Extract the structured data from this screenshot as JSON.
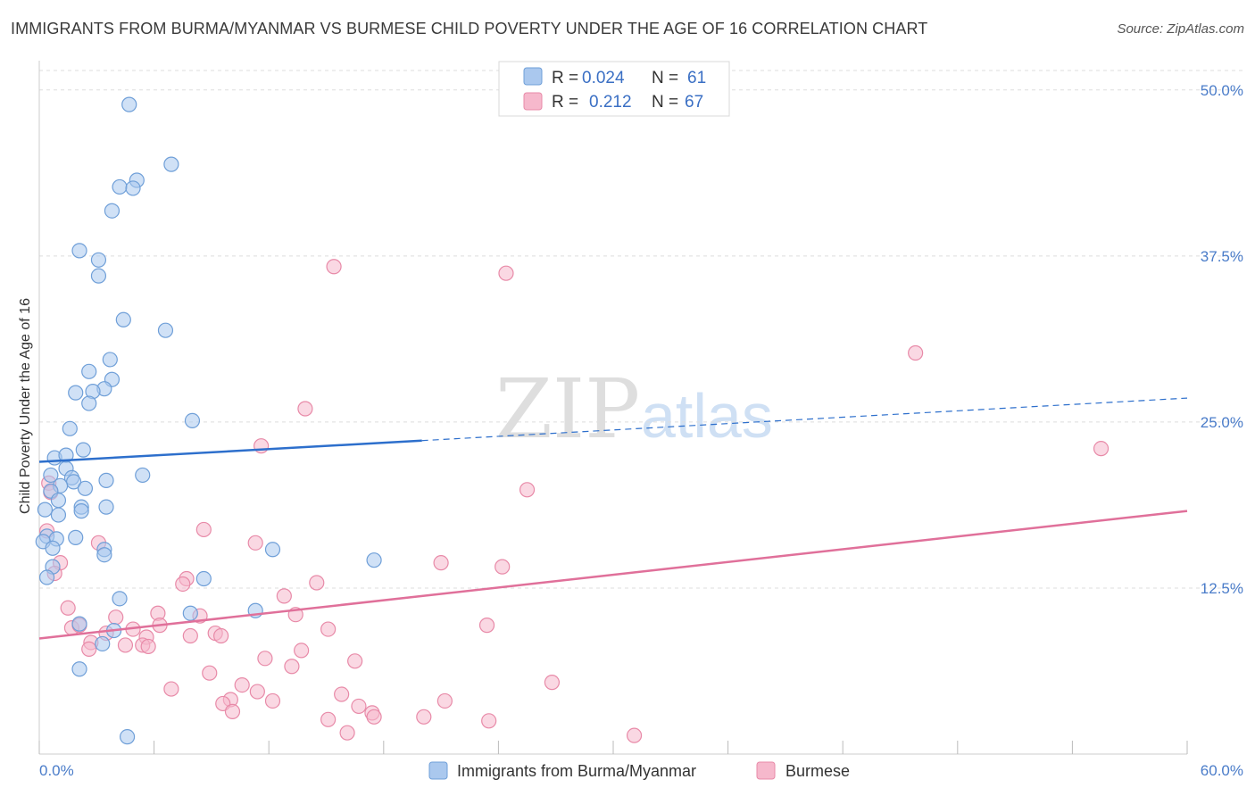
{
  "title": "IMMIGRANTS FROM BURMA/MYANMAR VS BURMESE CHILD POVERTY UNDER THE AGE OF 16 CORRELATION CHART",
  "source": "Source: ZipAtlas.com",
  "watermark": {
    "zip": "ZIP",
    "atlas": "atlas"
  },
  "colors": {
    "blue_fill": "#aac8ee",
    "blue_stroke": "#6f9fd8",
    "blue_line": "#2d6fcc",
    "pink_fill": "#f6b8cc",
    "pink_stroke": "#e88aa8",
    "pink_line": "#e0709a",
    "grid": "#dddddd",
    "axis_text": "#4a7cc9"
  },
  "legend": {
    "rows": [
      {
        "r_label": "R =",
        "r_value": "0.024",
        "n_label": "N =",
        "n_value": "61"
      },
      {
        "r_label": "R =",
        "r_value": "0.212",
        "n_label": "N =",
        "n_value": "67"
      }
    ]
  },
  "chart_data": {
    "type": "scatter",
    "title": "IMMIGRANTS FROM BURMA/MYANMAR VS BURMESE CHILD POVERTY UNDER THE AGE OF 16 CORRELATION CHART",
    "xlabel": "",
    "ylabel": "Child Poverty Under the Age of 16",
    "xlim": [
      0,
      60
    ],
    "ylim": [
      0,
      52
    ],
    "x_tick_labels": [
      "0.0%",
      "60.0%"
    ],
    "y_ticks": [
      12.5,
      25.0,
      37.5,
      50.0
    ],
    "y_tick_labels": [
      "12.5%",
      "25.0%",
      "37.5%",
      "50.0%"
    ],
    "grid": true,
    "legend_position": "top-center",
    "series": [
      {
        "name": "Immigrants from Burma/Myanmar",
        "color": "blue",
        "trend": {
          "x_solid_end": 20,
          "x_end": 60,
          "y_start": 22.0,
          "y_at_solid_end": 23.6,
          "y_end": 26.8
        },
        "points": [
          [
            4.7,
            48.9
          ],
          [
            6.9,
            44.4
          ],
          [
            5.1,
            43.2
          ],
          [
            4.2,
            42.7
          ],
          [
            4.9,
            42.6
          ],
          [
            3.8,
            40.9
          ],
          [
            2.1,
            37.9
          ],
          [
            3.1,
            37.2
          ],
          [
            3.1,
            36.0
          ],
          [
            4.4,
            32.7
          ],
          [
            6.6,
            31.9
          ],
          [
            3.7,
            29.7
          ],
          [
            2.6,
            28.8
          ],
          [
            3.8,
            28.2
          ],
          [
            3.4,
            27.5
          ],
          [
            2.8,
            27.3
          ],
          [
            1.9,
            27.2
          ],
          [
            2.6,
            26.4
          ],
          [
            1.6,
            24.5
          ],
          [
            8.0,
            25.1
          ],
          [
            2.3,
            22.9
          ],
          [
            0.8,
            22.3
          ],
          [
            1.4,
            22.5
          ],
          [
            1.4,
            21.5
          ],
          [
            0.6,
            21.0
          ],
          [
            5.4,
            21.0
          ],
          [
            1.7,
            20.8
          ],
          [
            3.5,
            20.6
          ],
          [
            1.8,
            20.5
          ],
          [
            1.1,
            20.2
          ],
          [
            2.4,
            20.0
          ],
          [
            0.6,
            19.8
          ],
          [
            1.0,
            19.1
          ],
          [
            2.2,
            18.6
          ],
          [
            3.5,
            18.6
          ],
          [
            1.0,
            18.0
          ],
          [
            0.3,
            18.4
          ],
          [
            2.2,
            18.3
          ],
          [
            0.4,
            16.4
          ],
          [
            1.9,
            16.3
          ],
          [
            0.9,
            16.2
          ],
          [
            0.2,
            16.0
          ],
          [
            0.7,
            15.5
          ],
          [
            3.4,
            15.4
          ],
          [
            12.2,
            15.4
          ],
          [
            3.4,
            15.0
          ],
          [
            17.5,
            14.6
          ],
          [
            0.7,
            14.1
          ],
          [
            8.6,
            13.2
          ],
          [
            0.4,
            13.3
          ],
          [
            4.2,
            11.7
          ],
          [
            11.3,
            10.8
          ],
          [
            7.9,
            10.6
          ],
          [
            2.1,
            9.8
          ],
          [
            3.9,
            9.3
          ],
          [
            3.3,
            8.3
          ],
          [
            2.1,
            6.4
          ],
          [
            4.6,
            1.3
          ]
        ]
      },
      {
        "name": "Burmese",
        "color": "pink",
        "trend": {
          "x_start": 0,
          "x_end": 60,
          "y_start": 8.7,
          "y_end": 18.3
        },
        "points": [
          [
            15.4,
            36.7
          ],
          [
            24.4,
            36.2
          ],
          [
            45.8,
            30.2
          ],
          [
            55.5,
            23.0
          ],
          [
            13.9,
            26.0
          ],
          [
            11.6,
            23.2
          ],
          [
            25.5,
            19.9
          ],
          [
            0.5,
            20.4
          ],
          [
            0.6,
            19.7
          ],
          [
            0.4,
            16.8
          ],
          [
            8.6,
            16.9
          ],
          [
            11.3,
            15.9
          ],
          [
            3.1,
            15.9
          ],
          [
            1.1,
            14.4
          ],
          [
            21.0,
            14.4
          ],
          [
            24.2,
            14.1
          ],
          [
            0.8,
            13.6
          ],
          [
            7.7,
            13.2
          ],
          [
            14.5,
            12.9
          ],
          [
            7.5,
            12.8
          ],
          [
            12.8,
            11.9
          ],
          [
            1.5,
            11.0
          ],
          [
            6.2,
            10.6
          ],
          [
            8.4,
            10.4
          ],
          [
            13.4,
            10.5
          ],
          [
            4.0,
            10.3
          ],
          [
            6.3,
            9.7
          ],
          [
            23.4,
            9.7
          ],
          [
            1.7,
            9.5
          ],
          [
            2.1,
            9.7
          ],
          [
            4.9,
            9.4
          ],
          [
            15.1,
            9.4
          ],
          [
            9.2,
            9.1
          ],
          [
            3.5,
            9.1
          ],
          [
            9.5,
            8.9
          ],
          [
            7.9,
            8.9
          ],
          [
            5.6,
            8.8
          ],
          [
            2.7,
            8.4
          ],
          [
            4.5,
            8.2
          ],
          [
            5.4,
            8.2
          ],
          [
            5.7,
            8.1
          ],
          [
            13.7,
            7.8
          ],
          [
            2.6,
            7.9
          ],
          [
            11.8,
            7.2
          ],
          [
            16.5,
            7.0
          ],
          [
            13.2,
            6.6
          ],
          [
            8.9,
            6.1
          ],
          [
            26.8,
            5.4
          ],
          [
            6.9,
            4.9
          ],
          [
            10.6,
            5.2
          ],
          [
            11.4,
            4.7
          ],
          [
            10.0,
            4.1
          ],
          [
            15.8,
            4.5
          ],
          [
            12.2,
            4.0
          ],
          [
            21.2,
            4.0
          ],
          [
            9.6,
            3.8
          ],
          [
            16.7,
            3.6
          ],
          [
            10.1,
            3.2
          ],
          [
            17.4,
            3.1
          ],
          [
            17.5,
            2.8
          ],
          [
            20.1,
            2.8
          ],
          [
            15.1,
            2.6
          ],
          [
            23.5,
            2.5
          ],
          [
            16.1,
            1.6
          ],
          [
            31.1,
            1.4
          ]
        ]
      }
    ]
  },
  "bottom_legend": {
    "items": [
      {
        "label": "Immigrants from Burma/Myanmar"
      },
      {
        "label": "Burmese"
      }
    ]
  }
}
